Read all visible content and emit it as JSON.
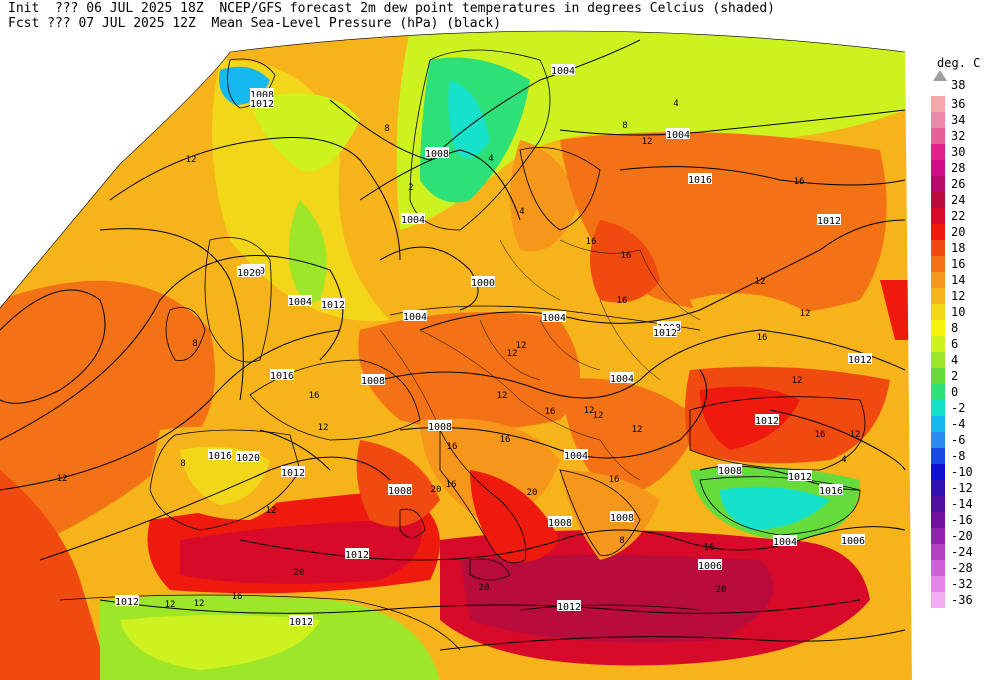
{
  "header": {
    "init_line": "Init  ??? 06 JUL 2025 18Z  NCEP/GFS forecast 2m dew point temperatures in degrees Celcius (shaded)",
    "fcst_line": "Fcst ??? 07 JUL 2025 12Z  Mean Sea-Level Pressure (hPa) (black)"
  },
  "legend": {
    "unit": "deg. C",
    "top_label": "38",
    "items": [
      {
        "label": "36",
        "color": "#f5a8a8"
      },
      {
        "label": "34",
        "color": "#ee88a8"
      },
      {
        "label": "32",
        "color": "#e8609a"
      },
      {
        "label": "30",
        "color": "#e4208c"
      },
      {
        "label": "28",
        "color": "#d00c86"
      },
      {
        "label": "26",
        "color": "#b80a6a"
      },
      {
        "label": "24",
        "color": "#b80c3c"
      },
      {
        "label": "22",
        "color": "#d80a2a"
      },
      {
        "label": "20",
        "color": "#ee1a0e"
      },
      {
        "label": "18",
        "color": "#f04a10"
      },
      {
        "label": "16",
        "color": "#f47216"
      },
      {
        "label": "14",
        "color": "#f6961a"
      },
      {
        "label": "12",
        "color": "#f6b41a"
      },
      {
        "label": "10",
        "color": "#f2d61a"
      },
      {
        "label": "8",
        "color": "#f6f40e"
      },
      {
        "label": "6",
        "color": "#cef220"
      },
      {
        "label": "4",
        "color": "#9ee62a"
      },
      {
        "label": "2",
        "color": "#66dc3c"
      },
      {
        "label": "0",
        "color": "#2ee078"
      },
      {
        "label": "-2",
        "color": "#16e2cc"
      },
      {
        "label": "-4",
        "color": "#16b8f0"
      },
      {
        "label": "-6",
        "color": "#2a8cf0"
      },
      {
        "label": "-8",
        "color": "#1a4ae4"
      },
      {
        "label": "-10",
        "color": "#1010d0"
      },
      {
        "label": "-12",
        "color": "#3010b0"
      },
      {
        "label": "-14",
        "color": "#5010a0"
      },
      {
        "label": "-16",
        "color": "#7010a0"
      },
      {
        "label": "-20",
        "color": "#9420b0"
      },
      {
        "label": "-24",
        "color": "#b640c0"
      },
      {
        "label": "-28",
        "color": "#d060d8"
      },
      {
        "label": "-32",
        "color": "#e284e8"
      },
      {
        "label": "-36",
        "color": "#f2acf2"
      }
    ]
  },
  "map": {
    "pressure_labels": [
      "1004",
      "1008",
      "1012",
      "1004",
      "1008",
      "1016",
      "1012",
      "1004",
      "1000",
      "1000",
      "1020",
      "1012",
      "1004",
      "1004",
      "1008",
      "1016",
      "1012",
      "1008",
      "1004",
      "1012",
      "1016",
      "1020",
      "1012",
      "1008",
      "1004",
      "1008",
      "1012",
      "1016",
      "1012",
      "1008",
      "1008",
      "1004",
      "1012",
      "1012",
      "1012",
      "1006",
      "1006",
      "1008",
      "1012",
      "1004"
    ],
    "temp_labels": [
      "12",
      "8",
      "12",
      "4",
      "4",
      "8",
      "12",
      "16",
      "4",
      "2",
      "16",
      "16",
      "12",
      "16",
      "8",
      "16",
      "12",
      "16",
      "12",
      "12",
      "12",
      "12",
      "16",
      "16",
      "20",
      "16",
      "12",
      "12",
      "12",
      "20",
      "16",
      "20",
      "12",
      "12",
      "16",
      "20",
      "4",
      "8",
      "16",
      "12",
      "16",
      "12",
      "20",
      "16",
      "8",
      "12"
    ]
  }
}
